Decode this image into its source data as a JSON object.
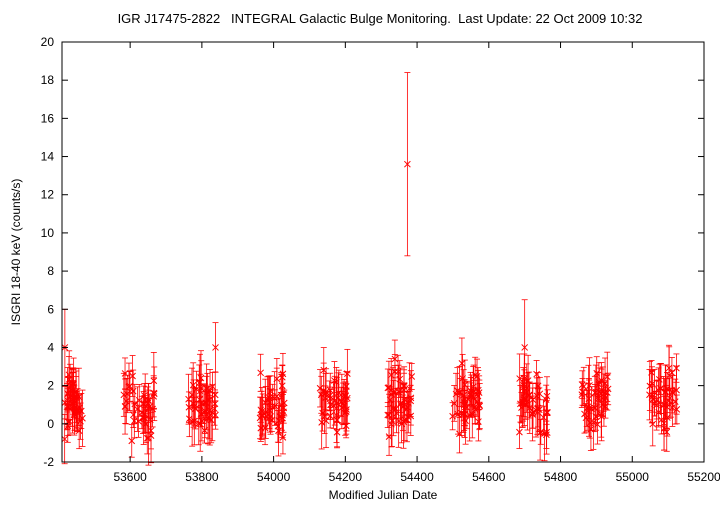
{
  "chart_data": {
    "type": "scatter",
    "title": "IGR J17475-2822   INTEGRAL Galactic Bulge Monitoring.  Last Update: 22 Oct 2009 10:32",
    "xlabel": "Modified Julian Date",
    "ylabel": "ISGRI 18-40 keV (counts/s)",
    "xlim": [
      53410,
      55200
    ],
    "ylim": [
      -2,
      20
    ],
    "x_ticks": [
      53600,
      53800,
      54000,
      54200,
      54400,
      54600,
      54800,
      55000,
      55200
    ],
    "y_ticks": [
      -2,
      0,
      2,
      4,
      6,
      8,
      10,
      12,
      14,
      16,
      18,
      20
    ],
    "grid": false,
    "legend": "none",
    "marker": "x",
    "series_color": "#ff0000",
    "observation_windows": [
      {
        "start": 53412,
        "end": 53468,
        "mean": 1.0
      },
      {
        "start": 53582,
        "end": 53668,
        "mean": 0.9
      },
      {
        "start": 53762,
        "end": 53838,
        "mean": 0.9
      },
      {
        "start": 53962,
        "end": 54032,
        "mean": 1.1
      },
      {
        "start": 54128,
        "end": 54208,
        "mean": 1.1
      },
      {
        "start": 54318,
        "end": 54388,
        "mean": 1.3
      },
      {
        "start": 54498,
        "end": 54575,
        "mean": 1.2
      },
      {
        "start": 54685,
        "end": 54765,
        "mean": 1.2
      },
      {
        "start": 54858,
        "end": 54935,
        "mean": 1.2
      },
      {
        "start": 55048,
        "end": 55125,
        "mean": 1.5
      }
    ],
    "highlighted_points": [
      {
        "x": 54373,
        "y": 13.6,
        "err": 4.8
      },
      {
        "x": 53418,
        "y": 4.0,
        "err": 2.0
      },
      {
        "x": 54700,
        "y": 4.0,
        "err": 2.5
      },
      {
        "x": 53838,
        "y": 4.0,
        "err": 1.3
      }
    ]
  }
}
